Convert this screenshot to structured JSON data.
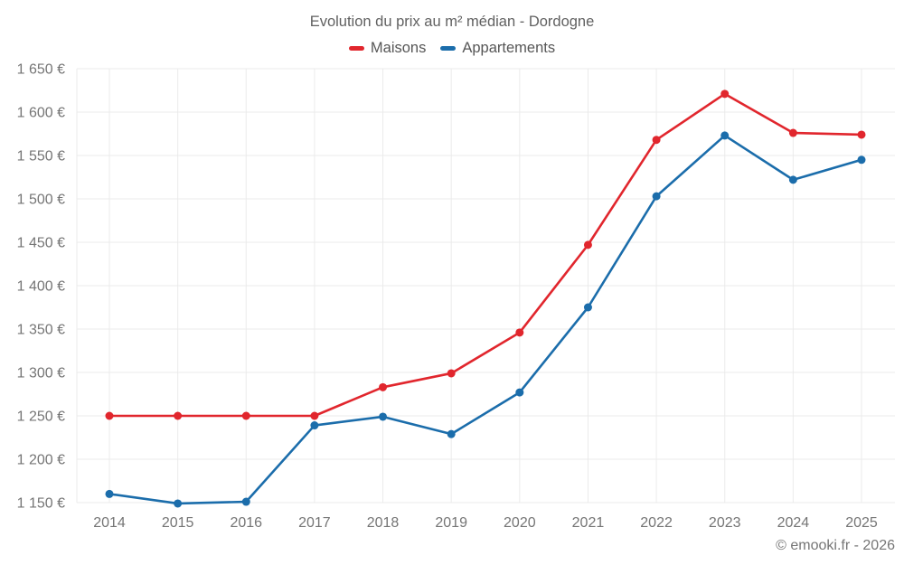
{
  "page": {
    "footer": "© emooki.fr - 2026"
  },
  "chart_data": {
    "type": "line",
    "title": "Evolution du prix au m² médian - Dordogne",
    "categories": [
      "2014",
      "2015",
      "2016",
      "2017",
      "2018",
      "2019",
      "2020",
      "2021",
      "2022",
      "2023",
      "2024",
      "2025"
    ],
    "series": [
      {
        "name": "Maisons",
        "color": "#e1262d",
        "values": [
          1250,
          1250,
          1250,
          1250,
          1283,
          1299,
          1346,
          1447,
          1568,
          1621,
          1576,
          1574
        ]
      },
      {
        "name": "Appartements",
        "color": "#1b6dab",
        "values": [
          1160,
          1149,
          1151,
          1239,
          1249,
          1229,
          1277,
          1375,
          1503,
          1573,
          1522,
          1545
        ]
      }
    ],
    "ylim": [
      1150,
      1650
    ],
    "ytick_step": 50,
    "ytick_labels": [
      "1 150 €",
      "1 200 €",
      "1 250 €",
      "1 300 €",
      "1 350 €",
      "1 400 €",
      "1 450 €",
      "1 500 €",
      "1 550 €",
      "1 600 €",
      "1 650 €"
    ],
    "xlabel": "",
    "ylabel": "",
    "grid": true,
    "legend_position": "top",
    "colors": {
      "grid": "#ebebeb",
      "axis_text": "#757575",
      "title_text": "#616161"
    }
  }
}
